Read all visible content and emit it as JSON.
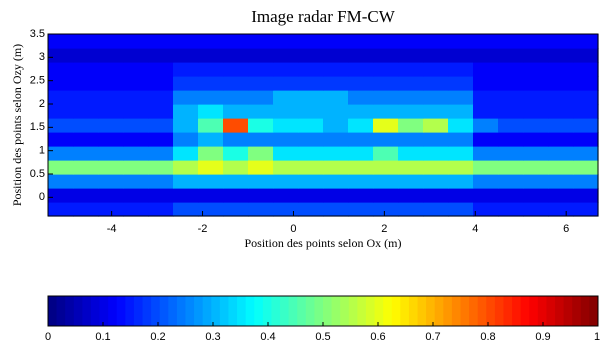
{
  "chart_data": {
    "type": "heatmap",
    "title": "Image radar FM-CW",
    "x_label": "Position des points selon Ox (m)",
    "y_label": "Position des points selon Ozy (m)",
    "colormap": "jet",
    "xlim": [
      -5.4,
      6.7
    ],
    "ylim": [
      -0.4,
      3.5
    ],
    "xticks": [
      -4,
      -2,
      0,
      2,
      4,
      6
    ],
    "yticks": [
      0,
      0.5,
      1,
      1.5,
      2,
      2.5,
      3,
      3.5
    ],
    "x": [
      -5.125,
      -4.575,
      -4.025,
      -3.475,
      -2.925,
      -2.375,
      -1.825,
      -1.275,
      -0.725,
      -0.175,
      0.375,
      0.925,
      1.475,
      2.025,
      2.575,
      3.125,
      3.675,
      4.225,
      4.775,
      5.325,
      5.875,
      6.425
    ],
    "y": [
      -0.25,
      0.05,
      0.35,
      0.65,
      0.95,
      1.25,
      1.55,
      1.85,
      2.15,
      2.45,
      2.75,
      3.05,
      3.35
    ],
    "z": [
      [
        0.15,
        0.15,
        0.15,
        0.15,
        0.15,
        0.2,
        0.2,
        0.2,
        0.2,
        0.2,
        0.2,
        0.2,
        0.2,
        0.2,
        0.2,
        0.2,
        0.2,
        0.15,
        0.15,
        0.15,
        0.15,
        0.15
      ],
      [
        0.1,
        0.1,
        0.1,
        0.1,
        0.1,
        0.1,
        0.1,
        0.1,
        0.1,
        0.1,
        0.1,
        0.1,
        0.1,
        0.1,
        0.1,
        0.1,
        0.1,
        0.1,
        0.1,
        0.1,
        0.1,
        0.1
      ],
      [
        0.25,
        0.25,
        0.25,
        0.25,
        0.25,
        0.3,
        0.3,
        0.3,
        0.3,
        0.3,
        0.3,
        0.3,
        0.3,
        0.3,
        0.3,
        0.3,
        0.3,
        0.25,
        0.25,
        0.25,
        0.25,
        0.25
      ],
      [
        0.5,
        0.5,
        0.5,
        0.5,
        0.5,
        0.55,
        0.6,
        0.55,
        0.6,
        0.55,
        0.55,
        0.55,
        0.55,
        0.55,
        0.55,
        0.55,
        0.55,
        0.5,
        0.5,
        0.5,
        0.5,
        0.5
      ],
      [
        0.25,
        0.25,
        0.25,
        0.25,
        0.25,
        0.35,
        0.5,
        0.4,
        0.5,
        0.35,
        0.35,
        0.35,
        0.35,
        0.45,
        0.35,
        0.35,
        0.35,
        0.25,
        0.25,
        0.25,
        0.25,
        0.25
      ],
      [
        0.12,
        0.12,
        0.12,
        0.12,
        0.12,
        0.25,
        0.3,
        0.25,
        0.25,
        0.25,
        0.25,
        0.25,
        0.25,
        0.25,
        0.25,
        0.25,
        0.25,
        0.12,
        0.12,
        0.12,
        0.12,
        0.12
      ],
      [
        0.2,
        0.2,
        0.2,
        0.2,
        0.2,
        0.3,
        0.45,
        0.8,
        0.4,
        0.35,
        0.35,
        0.3,
        0.35,
        0.6,
        0.5,
        0.55,
        0.35,
        0.25,
        0.2,
        0.2,
        0.2,
        0.2
      ],
      [
        0.15,
        0.15,
        0.15,
        0.15,
        0.15,
        0.3,
        0.35,
        0.3,
        0.3,
        0.3,
        0.3,
        0.3,
        0.3,
        0.3,
        0.3,
        0.3,
        0.3,
        0.15,
        0.15,
        0.15,
        0.15,
        0.15
      ],
      [
        0.15,
        0.15,
        0.15,
        0.15,
        0.15,
        0.25,
        0.25,
        0.25,
        0.25,
        0.3,
        0.3,
        0.3,
        0.25,
        0.25,
        0.25,
        0.25,
        0.25,
        0.15,
        0.15,
        0.15,
        0.15,
        0.15
      ],
      [
        0.12,
        0.12,
        0.12,
        0.12,
        0.12,
        0.18,
        0.18,
        0.18,
        0.18,
        0.18,
        0.18,
        0.18,
        0.18,
        0.18,
        0.18,
        0.18,
        0.18,
        0.12,
        0.12,
        0.12,
        0.12,
        0.12
      ],
      [
        0.12,
        0.12,
        0.12,
        0.12,
        0.12,
        0.15,
        0.15,
        0.15,
        0.15,
        0.15,
        0.15,
        0.15,
        0.15,
        0.15,
        0.15,
        0.15,
        0.15,
        0.12,
        0.12,
        0.12,
        0.12,
        0.12
      ],
      [
        0.08,
        0.08,
        0.08,
        0.08,
        0.08,
        0.08,
        0.08,
        0.08,
        0.08,
        0.08,
        0.08,
        0.08,
        0.08,
        0.08,
        0.08,
        0.08,
        0.08,
        0.08,
        0.08,
        0.08,
        0.08,
        0.08
      ],
      [
        0.12,
        0.12,
        0.12,
        0.12,
        0.12,
        0.12,
        0.12,
        0.12,
        0.12,
        0.12,
        0.12,
        0.12,
        0.12,
        0.12,
        0.12,
        0.12,
        0.12,
        0.12,
        0.12,
        0.12,
        0.12,
        0.12
      ]
    ],
    "clim": [
      0,
      1
    ],
    "cticks": [
      0,
      0.1,
      0.2,
      0.3,
      0.4,
      0.5,
      0.6,
      0.7,
      0.8,
      0.9,
      1
    ]
  }
}
